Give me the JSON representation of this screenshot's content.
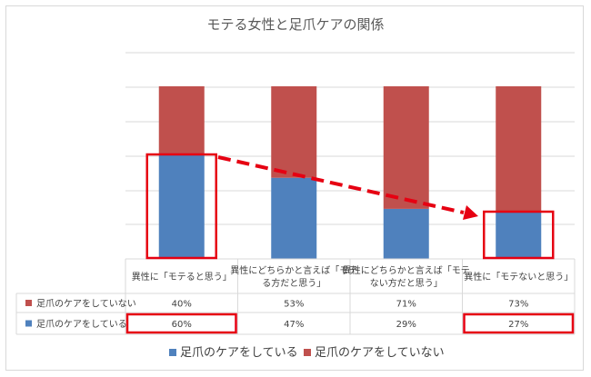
{
  "chart_data": {
    "type": "bar",
    "stacked": true,
    "title": "モテる女性と足爪ケアの関係",
    "categories_lines": [
      [
        "異性に「モテると思う」"
      ],
      [
        "異性にどちらかと言えば「モテ",
        "る方だと思う」"
      ],
      [
        "異性にどちらかと言えば「モテ",
        "ない方だと思う」"
      ],
      [
        "異性に「モテないと思う」"
      ]
    ],
    "series": [
      {
        "name": "足爪のケアをしている",
        "color": "#4f81bd",
        "values": [
          60,
          47,
          29,
          27
        ],
        "labels": [
          "60%",
          "47%",
          "29%",
          "27%"
        ]
      },
      {
        "name": "足爪のケアをしていない",
        "color": "#c0504d",
        "values": [
          40,
          53,
          71,
          73
        ],
        "labels": [
          "40%",
          "53%",
          "71%",
          "73%"
        ]
      }
    ],
    "ylim": [
      0,
      100
    ],
    "grid": true,
    "data_table": true,
    "legend_position": "bottom",
    "highlight_color": "#e60012",
    "highlighted_category_indices": [
      0,
      3
    ]
  }
}
